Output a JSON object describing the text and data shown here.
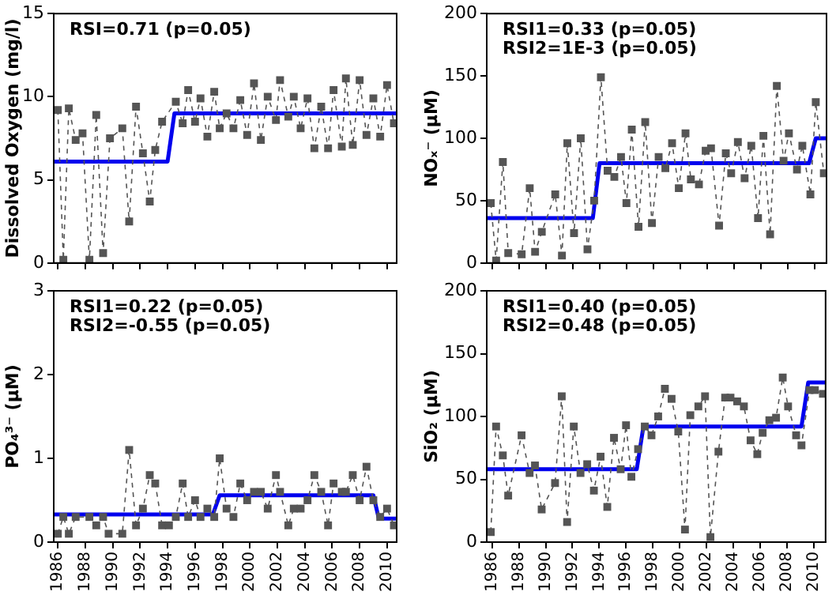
{
  "chart_data": [
    {
      "type": "line",
      "ylabel": "Dissolved Oxygen (mg/l)",
      "annotations": [
        "RSI=0.71 (p=0.05)"
      ],
      "xlim": [
        1985.7,
        2010.7
      ],
      "xticks": [
        1986,
        1988,
        1990,
        1992,
        1994,
        1996,
        1998,
        2000,
        2002,
        2004,
        2006,
        2008,
        2010
      ],
      "ylim": [
        0,
        15
      ],
      "yticks": [
        0,
        5,
        10,
        15
      ],
      "tick_labels": "y",
      "grid": false,
      "legend": false,
      "series": [
        {
          "type": "line",
          "color": "#555555",
          "marker": "square",
          "line_style": "dashed",
          "x": [
            1986.0,
            1986.4,
            1986.8,
            1987.3,
            1987.8,
            1988.3,
            1988.8,
            1989.3,
            1989.8,
            1990.7,
            1991.2,
            1991.7,
            1992.2,
            1992.7,
            1993.1,
            1993.6,
            1994.6,
            1995.1,
            1995.5,
            1996.0,
            1996.4,
            1996.9,
            1997.4,
            1997.8,
            1998.3,
            1998.8,
            1999.3,
            1999.8,
            2000.3,
            2000.8,
            2001.3,
            2001.9,
            2002.2,
            2002.8,
            2003.2,
            2003.7,
            2004.2,
            2004.7,
            2005.2,
            2005.7,
            2006.1,
            2006.7,
            2007.0,
            2007.5,
            2008.0,
            2008.5,
            2009.0,
            2009.5,
            2010.0,
            2010.5
          ],
          "values": [
            9.2,
            0.2,
            9.3,
            7.4,
            7.8,
            0.2,
            8.9,
            0.6,
            7.5,
            8.1,
            2.5,
            9.4,
            6.6,
            3.7,
            6.8,
            8.5,
            9.7,
            8.4,
            10.4,
            8.5,
            9.9,
            7.6,
            10.3,
            8.1,
            9.0,
            8.1,
            9.8,
            7.7,
            10.8,
            7.4,
            10.0,
            8.6,
            11.0,
            8.8,
            10.0,
            8.1,
            9.9,
            6.9,
            9.4,
            6.9,
            10.4,
            7.0,
            11.1,
            7.1,
            11.0,
            7.7,
            9.9,
            7.6,
            10.7,
            8.4
          ]
        },
        {
          "type": "line",
          "color": "#0000ee",
          "marker": "none",
          "line_style": "solid",
          "x": [
            1985.7,
            1994.0,
            1994.5,
            2010.7
          ],
          "values": [
            6.1,
            6.1,
            9.0,
            9.0
          ]
        }
      ]
    },
    {
      "type": "line",
      "ylabel": "NOₓ⁻ (μM)",
      "annotations": [
        "RSI1=0.33 (p=0.05)",
        "RSI2=1E-3 (p=0.05)"
      ],
      "xlim": [
        1985.6,
        2010.9
      ],
      "xticks": [
        1986,
        1988,
        1990,
        1992,
        1994,
        1996,
        1998,
        2000,
        2002,
        2004,
        2006,
        2008,
        2010
      ],
      "ylim": [
        0,
        200
      ],
      "yticks": [
        0,
        50,
        100,
        150,
        200
      ],
      "tick_labels": "y",
      "grid": false,
      "legend": false,
      "series": [
        {
          "type": "line",
          "color": "#555555",
          "marker": "square",
          "line_style": "dashed",
          "x": [
            1985.9,
            1986.3,
            1986.8,
            1987.2,
            1988.2,
            1988.8,
            1989.2,
            1989.7,
            1990.7,
            1991.2,
            1991.6,
            1992.1,
            1992.6,
            1993.1,
            1993.6,
            1994.1,
            1994.6,
            1995.1,
            1995.6,
            1996.0,
            1996.4,
            1996.9,
            1997.4,
            1997.9,
            1998.4,
            1998.9,
            1999.4,
            1999.9,
            2000.4,
            2000.8,
            2001.4,
            2001.9,
            2002.3,
            2002.9,
            2003.4,
            2003.8,
            2004.3,
            2004.8,
            2005.3,
            2005.8,
            2006.2,
            2006.7,
            2007.2,
            2007.7,
            2008.1,
            2008.7,
            2009.1,
            2009.7,
            2010.1,
            2010.7
          ],
          "values": [
            48,
            2,
            81,
            8,
            7,
            60,
            9,
            25,
            55,
            6,
            96,
            24,
            100,
            11,
            50,
            149,
            74,
            69,
            85,
            48,
            107,
            29,
            113,
            32,
            85,
            76,
            96,
            60,
            104,
            67,
            63,
            90,
            92,
            30,
            88,
            72,
            97,
            68,
            94,
            36,
            102,
            23,
            142,
            82,
            104,
            75,
            94,
            55,
            129,
            72
          ]
        },
        {
          "type": "line",
          "color": "#0000ee",
          "marker": "none",
          "line_style": "solid",
          "x": [
            1985.6,
            1993.5,
            1994.0,
            2009.6,
            2010.1,
            2010.9
          ],
          "values": [
            36,
            36,
            80,
            80,
            100,
            100
          ]
        }
      ]
    },
    {
      "type": "line",
      "ylabel": "PO₄³⁻ (μM)",
      "annotations": [
        "RSI1=0.22 (p=0.05)",
        "RSI2=-0.55 (p=0.05)"
      ],
      "xlim": [
        1985.7,
        2010.7
      ],
      "xticks": [
        1986,
        1988,
        1990,
        1992,
        1994,
        1996,
        1998,
        2000,
        2002,
        2004,
        2006,
        2008,
        2010
      ],
      "ylim": [
        0,
        3
      ],
      "yticks": [
        0,
        1,
        2,
        3
      ],
      "grid": false,
      "legend": false,
      "series": [
        {
          "type": "line",
          "color": "#555555",
          "marker": "square",
          "line_style": "dashed",
          "x": [
            1986.0,
            1986.4,
            1986.8,
            1987.3,
            1988.3,
            1988.8,
            1989.3,
            1989.7,
            1990.7,
            1991.2,
            1991.7,
            1992.2,
            1992.7,
            1993.1,
            1993.6,
            1994.1,
            1994.6,
            1995.1,
            1995.5,
            1996.0,
            1996.4,
            1996.9,
            1997.4,
            1997.8,
            1998.3,
            1998.8,
            1999.3,
            1999.8,
            2000.3,
            2000.8,
            2001.3,
            2001.9,
            2002.2,
            2002.8,
            2003.2,
            2003.7,
            2004.2,
            2004.7,
            2005.2,
            2005.7,
            2006.1,
            2006.7,
            2007.0,
            2007.5,
            2008.0,
            2008.5,
            2009.0,
            2009.5,
            2010.0,
            2010.5
          ],
          "values": [
            0.1,
            0.3,
            0.1,
            0.3,
            0.3,
            0.2,
            0.3,
            0.1,
            0.1,
            1.1,
            0.2,
            0.4,
            0.8,
            0.7,
            0.2,
            0.2,
            0.3,
            0.7,
            0.3,
            0.5,
            0.3,
            0.4,
            0.3,
            1.0,
            0.4,
            0.3,
            0.7,
            0.5,
            0.6,
            0.6,
            0.4,
            0.8,
            0.6,
            0.2,
            0.4,
            0.4,
            0.5,
            0.8,
            0.6,
            0.2,
            0.7,
            0.6,
            0.6,
            0.8,
            0.5,
            0.9,
            0.5,
            0.3,
            0.4,
            0.2
          ]
        },
        {
          "type": "line",
          "color": "#0000ee",
          "marker": "none",
          "line_style": "solid",
          "x": [
            1985.7,
            1997.3,
            1997.8,
            2009.0,
            2009.4,
            2010.7
          ],
          "values": [
            0.33,
            0.33,
            0.56,
            0.56,
            0.28,
            0.28
          ]
        }
      ]
    },
    {
      "type": "line",
      "ylabel": "SiO₂ (μM)",
      "annotations": [
        "RSI1=0.40 (p=0.05)",
        "RSI2=0.48 (p=0.05)"
      ],
      "xlim": [
        1985.6,
        2010.9
      ],
      "xticks": [
        1986,
        1988,
        1990,
        1992,
        1994,
        1996,
        1998,
        2000,
        2002,
        2004,
        2006,
        2008,
        2010
      ],
      "ylim": [
        0,
        200
      ],
      "yticks": [
        0,
        50,
        100,
        150,
        200
      ],
      "grid": false,
      "legend": false,
      "series": [
        {
          "type": "line",
          "color": "#555555",
          "marker": "square",
          "line_style": "dashed",
          "x": [
            1985.9,
            1986.3,
            1986.8,
            1987.2,
            1988.2,
            1988.8,
            1989.2,
            1989.7,
            1990.7,
            1991.2,
            1991.6,
            1992.1,
            1992.6,
            1993.1,
            1993.6,
            1994.1,
            1994.6,
            1995.1,
            1995.6,
            1996.0,
            1996.4,
            1996.9,
            1997.4,
            1997.9,
            1998.4,
            1998.9,
            1999.4,
            1999.9,
            2000.4,
            2000.8,
            2001.4,
            2001.9,
            2002.3,
            2002.9,
            2003.4,
            2003.8,
            2004.3,
            2004.8,
            2005.3,
            2005.8,
            2006.2,
            2006.7,
            2007.2,
            2007.7,
            2008.1,
            2008.7,
            2009.1,
            2009.7,
            2010.1,
            2010.7
          ],
          "values": [
            8,
            92,
            69,
            37,
            85,
            55,
            61,
            26,
            47,
            116,
            16,
            92,
            55,
            62,
            41,
            68,
            28,
            83,
            58,
            93,
            52,
            74,
            92,
            85,
            100,
            122,
            114,
            88,
            10,
            101,
            108,
            116,
            4,
            72,
            115,
            115,
            112,
            108,
            81,
            70,
            87,
            97,
            99,
            131,
            108,
            85,
            77,
            121,
            121,
            118
          ]
        },
        {
          "type": "line",
          "color": "#0000ee",
          "marker": "none",
          "line_style": "solid",
          "x": [
            1985.6,
            1996.8,
            1997.3,
            2009.1,
            2009.6,
            2010.9
          ],
          "values": [
            58,
            58,
            92,
            92,
            127,
            127
          ]
        }
      ]
    }
  ]
}
